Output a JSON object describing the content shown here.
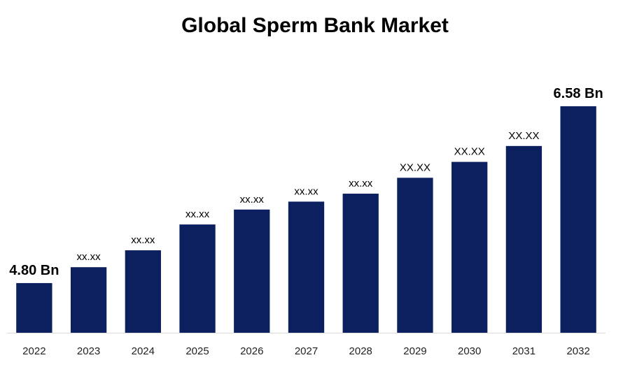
{
  "chart_data": {
    "type": "bar",
    "title": "Global Sperm Bank Market",
    "categories": [
      "2022",
      "2023",
      "2024",
      "2025",
      "2026",
      "2027",
      "2028",
      "2029",
      "2030",
      "2031",
      "2032"
    ],
    "values": [
      4.8,
      4.96,
      5.13,
      5.39,
      5.54,
      5.62,
      5.7,
      5.86,
      6.02,
      6.18,
      6.58
    ],
    "data_labels": [
      "4.80 Bn",
      "xx.xx",
      "xx.xx",
      "xx.xx",
      "xx.xx",
      "xx.xx",
      "xx.xx",
      "XX.XX",
      "XX.XX",
      "XX.XX",
      "6.58 Bn"
    ],
    "xlabel": "",
    "ylabel": "",
    "ylim": [
      4.3,
      6.58
    ],
    "grid": false,
    "legend": "none",
    "colors": {
      "bar": "#0c1f5f",
      "axis": "#d9d9d9"
    }
  }
}
